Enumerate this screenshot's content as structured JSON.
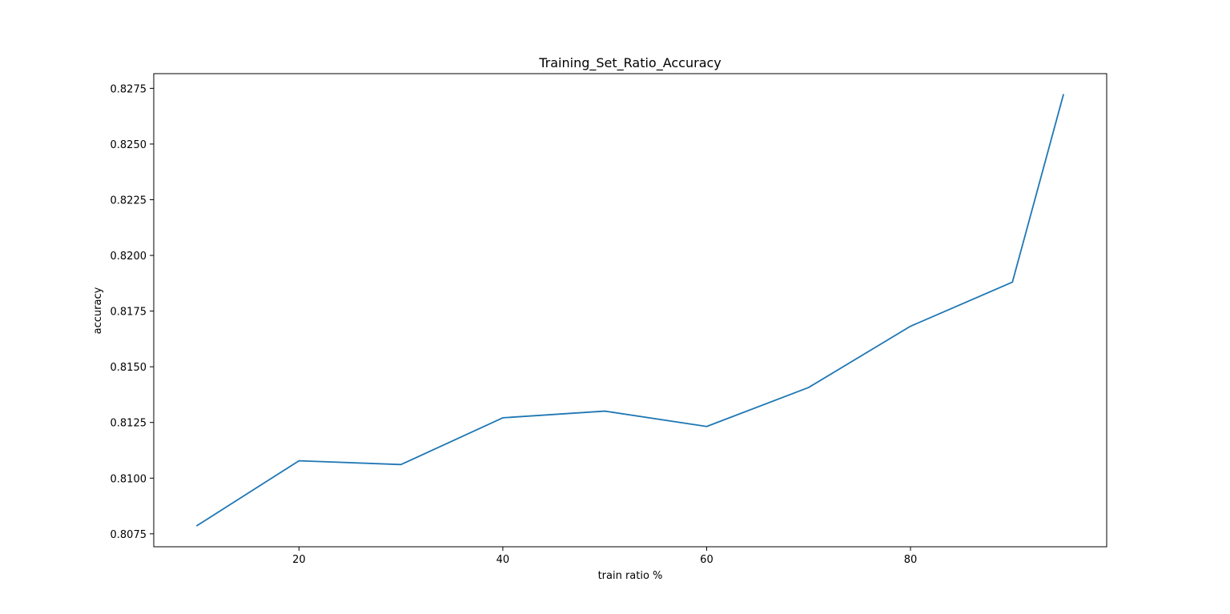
{
  "chart_data": {
    "type": "line",
    "title": "Training_Set_Ratio_Accuracy",
    "xlabel": "train ratio %",
    "ylabel": "accuracy",
    "x": [
      10,
      20,
      30,
      40,
      50,
      60,
      70,
      80,
      90,
      95
    ],
    "series": [
      {
        "values": [
          0.80787,
          0.81078,
          0.81061,
          0.81271,
          0.81301,
          0.81232,
          0.81407,
          0.81682,
          0.8188,
          0.82721
        ],
        "color": "#1f77b4"
      }
    ],
    "xlim": [
      5.75,
      99.25
    ],
    "ylim": [
      0.80692,
      0.82816
    ],
    "xticks": [
      20,
      40,
      60,
      80
    ],
    "xtick_labels": [
      "20",
      "40",
      "60",
      "80"
    ],
    "yticks": [
      0.8075,
      0.81,
      0.8125,
      0.815,
      0.8175,
      0.82,
      0.8225,
      0.825,
      0.8275
    ],
    "ytick_labels": [
      "0.8075",
      "0.8100",
      "0.8125",
      "0.8150",
      "0.8175",
      "0.8200",
      "0.8225",
      "0.8250",
      "0.8275"
    ],
    "grid": false,
    "legend": "none"
  }
}
